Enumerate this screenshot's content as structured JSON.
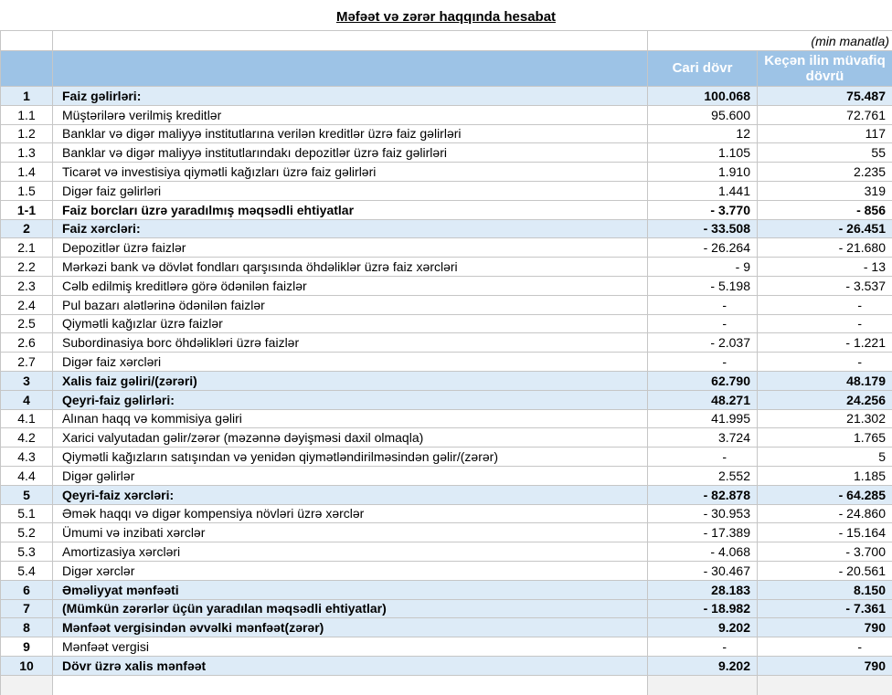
{
  "title": "Məfəət və zərər haqqında hesabat",
  "unit_note": "(min manatla)",
  "columns": {
    "current": "Cari dövr",
    "previous": "Keçən ilin müvafiq dövrü"
  },
  "colors": {
    "header_bg": "#9dc3e6",
    "header_text": "#ffffff",
    "section_bg": "#ddebf7",
    "border": "#c6c6c6",
    "outside_bg": "#f2f2f2"
  },
  "rows": [
    {
      "no": "1",
      "label": "Faiz gəlirləri:",
      "current": "100.068",
      "previous": "75.487",
      "style": "section"
    },
    {
      "no": "1.1",
      "label": "Müştərilərə verilmiş kreditlər",
      "current": "95.600",
      "previous": "72.761",
      "style": "item"
    },
    {
      "no": "1.2",
      "label": "Banklar və digər maliyyə institutlarına verilən kreditlər üzrə faiz gəlirləri",
      "current": "12",
      "previous": "117",
      "style": "item"
    },
    {
      "no": "1.3",
      "label": "Banklar və digər maliyyə institutlarındakı depozitlər üzrə faiz gəlirləri",
      "current": "1.105",
      "previous": "55",
      "style": "item"
    },
    {
      "no": "1.4",
      "label": "Ticarət və investisiya qiymətli kağızları üzrə faiz gəlirləri",
      "current": "1.910",
      "previous": "2.235",
      "style": "item"
    },
    {
      "no": "1.5",
      "label": "Digər faiz gəlirləri",
      "current": "1.441",
      "previous": "319",
      "style": "item"
    },
    {
      "no": "1-1",
      "label": "Faiz borcları üzrə yaradılmış məqsədli ehtiyatlar",
      "current": "- 3.770",
      "previous": "- 856",
      "style": "subtotal"
    },
    {
      "no": "2",
      "label": "Faiz xərcləri:",
      "current": "- 33.508",
      "previous": "- 26.451",
      "style": "section"
    },
    {
      "no": "2.1",
      "label": "Depozitlər üzrə faizlər",
      "current": "- 26.264",
      "previous": "- 21.680",
      "style": "item"
    },
    {
      "no": "2.2",
      "label": "Mərkəzi bank və dövlət fondları qarşısında öhdəliklər üzrə faiz xərcləri",
      "current": "- 9",
      "previous": "- 13",
      "style": "item"
    },
    {
      "no": "2.3",
      "label": "Cəlb edilmiş kreditlərə görə ödənilən faizlər",
      "current": "- 5.198",
      "previous": "- 3.537",
      "style": "item"
    },
    {
      "no": "2.4",
      "label": "Pul bazarı alətlərinə ödənilən faizlər",
      "current": "-",
      "previous": "-",
      "style": "item"
    },
    {
      "no": "2.5",
      "label": "Qiymətli kağızlar üzrə faizlər",
      "current": "-",
      "previous": "-",
      "style": "item"
    },
    {
      "no": "2.6",
      "label": "Subordinasiya borc öhdəlikləri üzrə faizlər",
      "current": "- 2.037",
      "previous": "- 1.221",
      "style": "item"
    },
    {
      "no": "2.7",
      "label": "Digər faiz xərcləri",
      "current": "-",
      "previous": "-",
      "style": "item"
    },
    {
      "no": "3",
      "label": "Xalis faiz gəliri/(zərəri)",
      "current": "62.790",
      "previous": "48.179",
      "style": "section"
    },
    {
      "no": "4",
      "label": "Qeyri-faiz gəlirləri:",
      "current": "48.271",
      "previous": "24.256",
      "style": "section"
    },
    {
      "no": "4.1",
      "label": "Alınan haqq və kommisiya gəliri",
      "current": "41.995",
      "previous": "21.302",
      "style": "item"
    },
    {
      "no": "4.2",
      "label": "Xarici valyutadan gəlir/zərər (məzənnə dəyişməsi daxil olmaqla)",
      "current": "3.724",
      "previous": "1.765",
      "style": "item"
    },
    {
      "no": "4.3",
      "label": "Qiymətli kağızların satışından və yenidən qiymətləndirilməsindən gəlir/(zərər)",
      "current": "-",
      "previous": "5",
      "style": "item"
    },
    {
      "no": "4.4",
      "label": "Digər gəlirlər",
      "current": "2.552",
      "previous": "1.185",
      "style": "item"
    },
    {
      "no": "5",
      "label": "Qeyri-faiz xərcləri:",
      "current": "- 82.878",
      "previous": "- 64.285",
      "style": "section"
    },
    {
      "no": "5.1",
      "label": "Əmək haqqı və digər kompensiya növləri üzrə xərclər",
      "current": "- 30.953",
      "previous": "- 24.860",
      "style": "item"
    },
    {
      "no": "5.2",
      "label": "Ümumi və inzibati xərclər",
      "current": "- 17.389",
      "previous": "- 15.164",
      "style": "item"
    },
    {
      "no": "5.3",
      "label": "Amortizasiya xərcləri",
      "current": "- 4.068",
      "previous": "- 3.700",
      "style": "item"
    },
    {
      "no": "5.4",
      "label": "Digər xərclər",
      "current": "- 30.467",
      "previous": "- 20.561",
      "style": "item"
    },
    {
      "no": "6",
      "label": "Əməliyyat mənfəəti",
      "current": "28.183",
      "previous": "8.150",
      "style": "section"
    },
    {
      "no": "7",
      "label": "(Mümkün zərərlər üçün yaradılan məqsədli ehtiyatlar)",
      "current": "- 18.982",
      "previous": "- 7.361",
      "style": "section"
    },
    {
      "no": "8",
      "label": "Mənfəət vergisindən əvvəlki mənfəət(zərər)",
      "current": "9.202",
      "previous": "790",
      "style": "section"
    },
    {
      "no": "9",
      "label": "Mənfəət vergisi",
      "current": "-",
      "previous": "-",
      "style": "item-boldno"
    },
    {
      "no": "10",
      "label": "Dövr üzrə xalis mənfəət",
      "current": "9.202",
      "previous": "790",
      "style": "section"
    }
  ]
}
